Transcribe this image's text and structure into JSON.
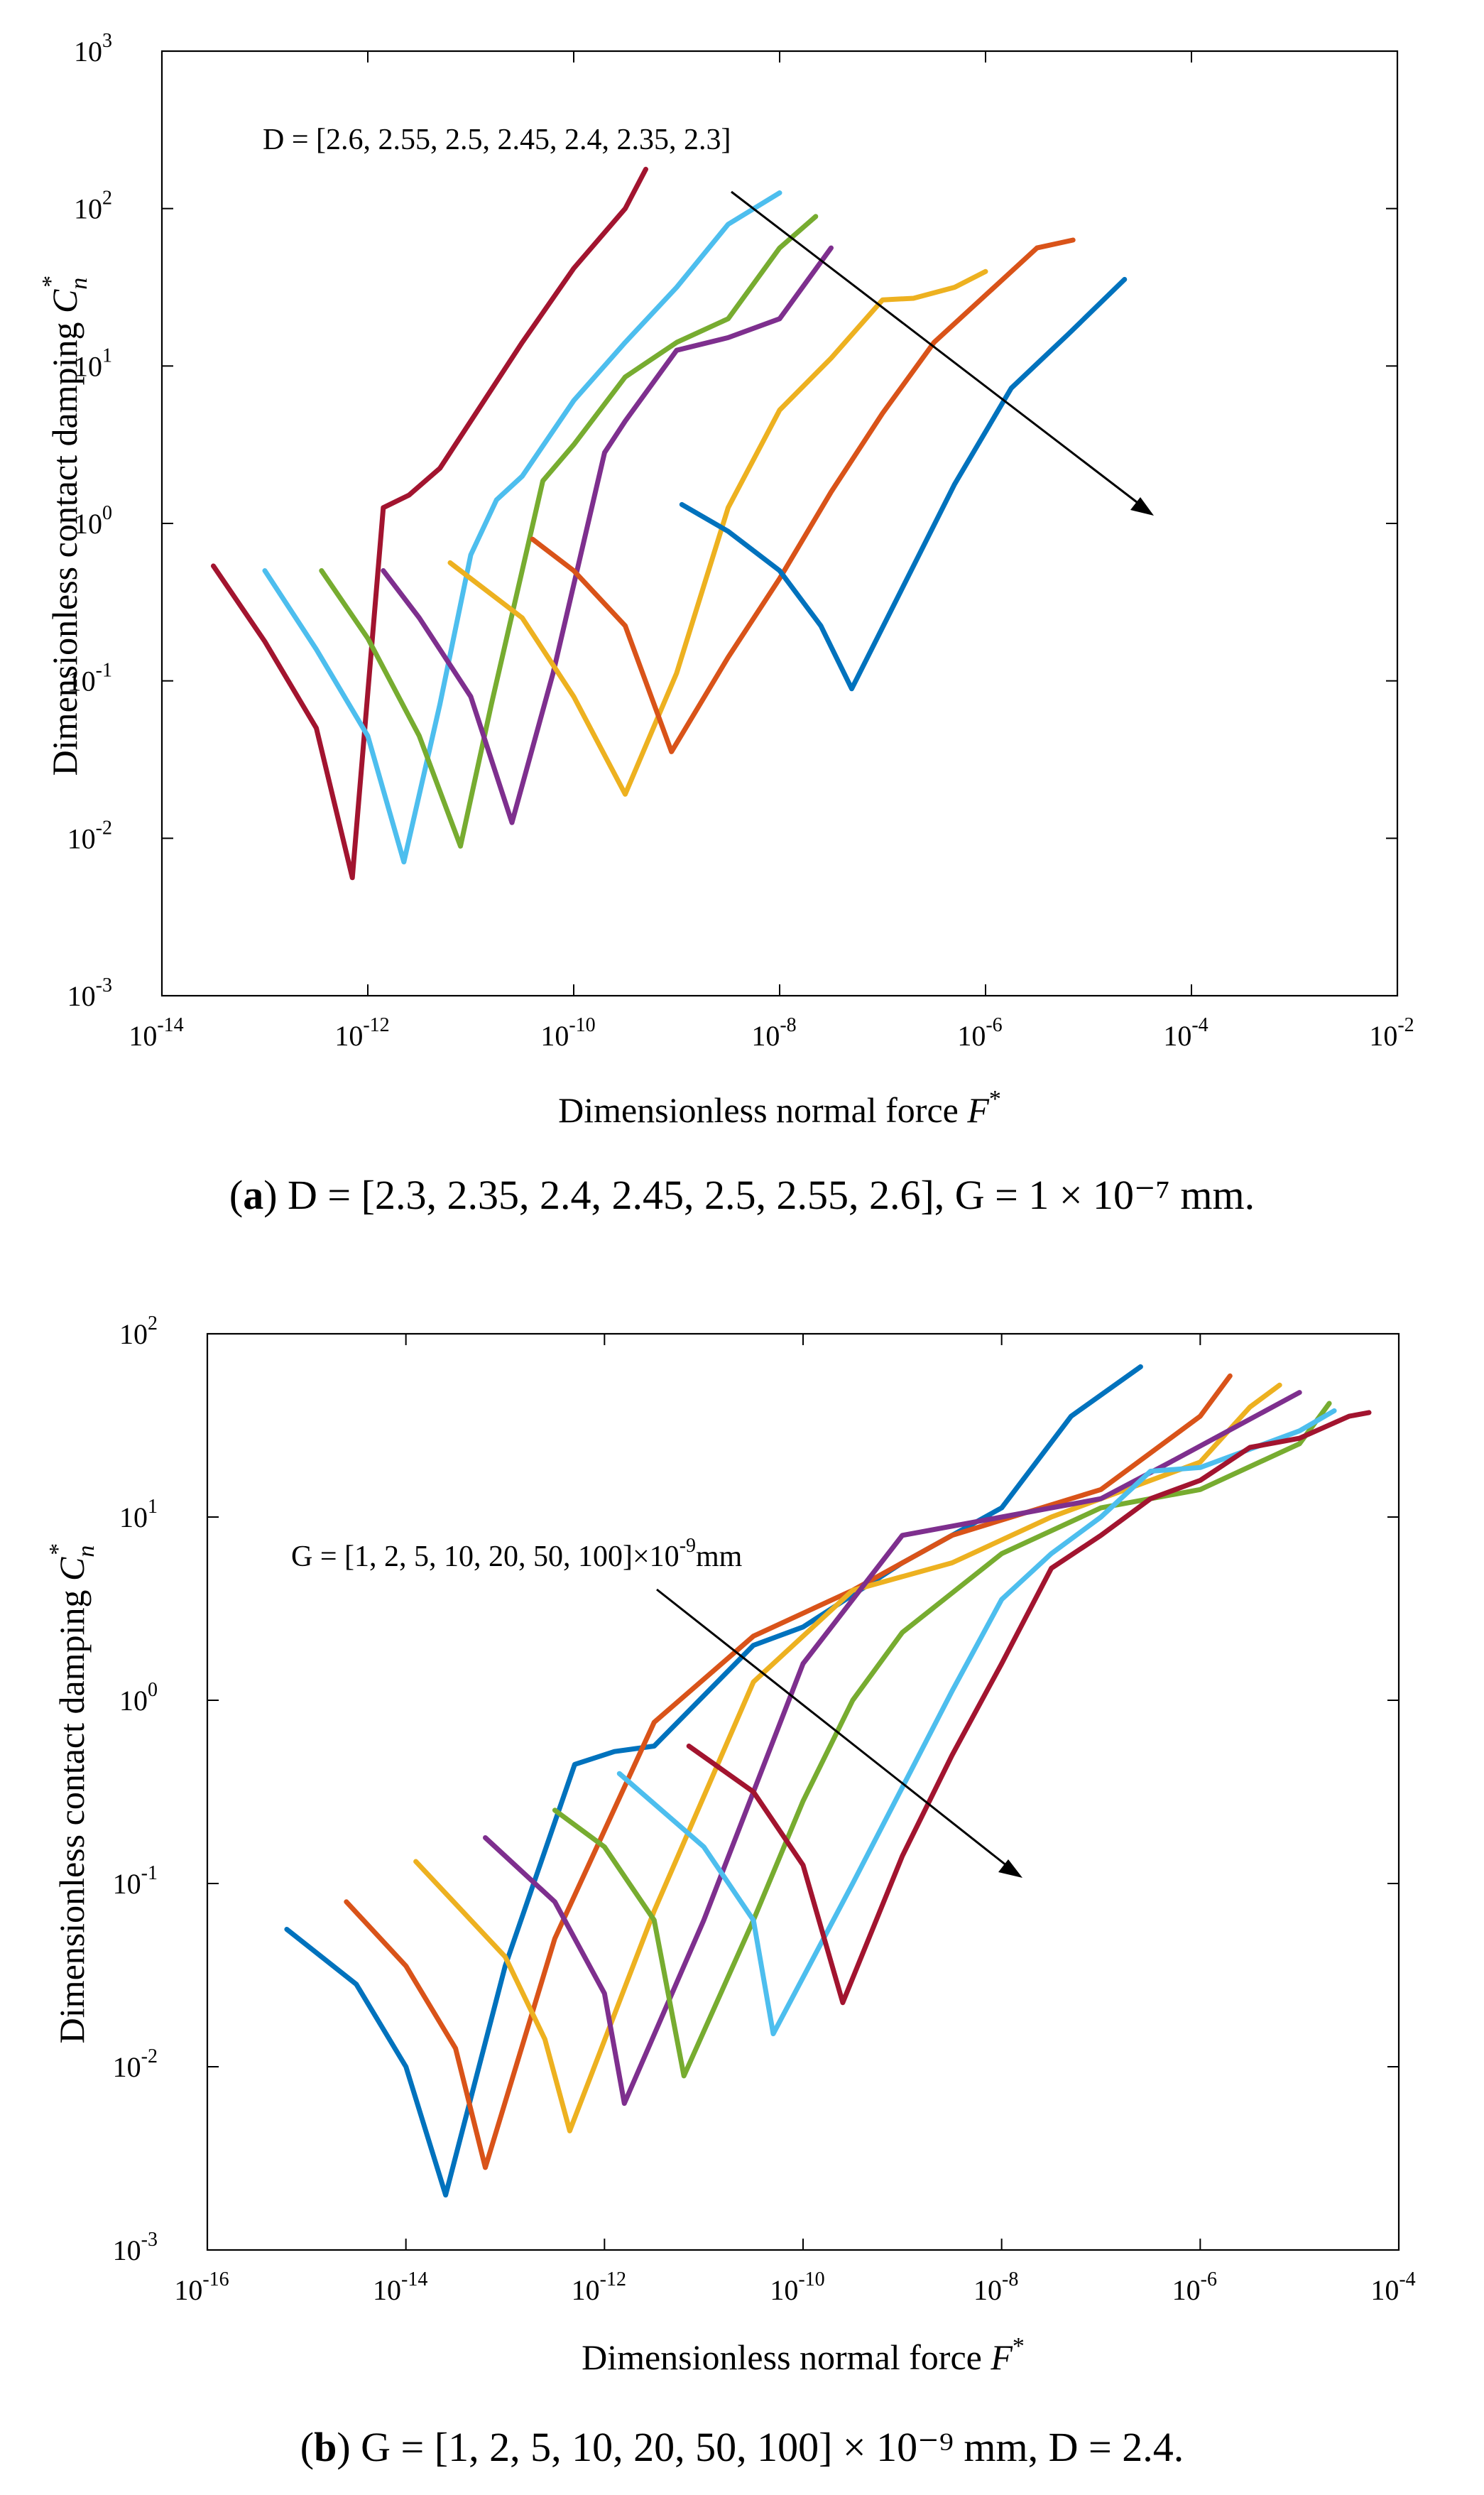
{
  "chart_data": [
    {
      "type": "line",
      "panel_label": "a",
      "xlabel": "Dimensionless normal force",
      "xlabel_symbol": "F",
      "xlabel_sup": "*",
      "ylabel": "Dimensionless contact damping",
      "ylabel_symbol": "C",
      "ylabel_sub": "n",
      "ylabel_sup": "*",
      "xscale": "log",
      "yscale": "log",
      "xlim": [
        1e-14,
        0.01
      ],
      "ylim": [
        0.001,
        1000.0
      ],
      "xticks": [
        {
          "base": "10",
          "exp": "-14"
        },
        {
          "base": "10",
          "exp": "-12"
        },
        {
          "base": "10",
          "exp": "-10"
        },
        {
          "base": "10",
          "exp": "-8"
        },
        {
          "base": "10",
          "exp": "-6"
        },
        {
          "base": "10",
          "exp": "-4"
        },
        {
          "base": "10",
          "exp": "-2"
        }
      ],
      "yticks": [
        {
          "base": "10",
          "exp": "-3"
        },
        {
          "base": "10",
          "exp": "-2"
        },
        {
          "base": "10",
          "exp": "-1"
        },
        {
          "base": "10",
          "exp": "0"
        },
        {
          "base": "10",
          "exp": "1"
        },
        {
          "base": "10",
          "exp": "2"
        },
        {
          "base": "10",
          "exp": "3"
        }
      ],
      "annotation": "D = [2.6, 2.55, 2.5, 2.45, 2.4, 2.35, 2.3]",
      "caption": {
        "label": "a",
        "text": "D = [2.3, 2.35, 2.4, 2.45, 2.5, 2.55, 2.6], G = 1 × 10⁻⁷ mm."
      },
      "series": [
        {
          "name": "D = 2.6",
          "color": "#A2142F",
          "points": [
            [
              -13.5,
              -0.27
            ],
            [
              -13.0,
              -0.75
            ],
            [
              -12.5,
              -1.3
            ],
            [
              -12.15,
              -2.25
            ],
            [
              -11.85,
              0.1
            ],
            [
              -11.6,
              0.18
            ],
            [
              -11.3,
              0.35
            ],
            [
              -11.0,
              0.65
            ],
            [
              -10.5,
              1.15
            ],
            [
              -10.0,
              1.62
            ],
            [
              -9.5,
              2.0
            ],
            [
              -9.3,
              2.25
            ]
          ]
        },
        {
          "name": "D = 2.55",
          "color": "#4DBEEE",
          "points": [
            [
              -13.0,
              -0.3
            ],
            [
              -12.5,
              -0.8
            ],
            [
              -12.0,
              -1.35
            ],
            [
              -11.65,
              -2.15
            ],
            [
              -11.3,
              -1.15
            ],
            [
              -11.0,
              -0.2
            ],
            [
              -10.75,
              0.15
            ],
            [
              -10.5,
              0.3
            ],
            [
              -10.0,
              0.78
            ],
            [
              -9.5,
              1.15
            ],
            [
              -9.0,
              1.5
            ],
            [
              -8.5,
              1.9
            ],
            [
              -8.0,
              2.1
            ]
          ]
        },
        {
          "name": "D = 2.5",
          "color": "#77AC30",
          "points": [
            [
              -12.45,
              -0.3
            ],
            [
              -12.0,
              -0.73
            ],
            [
              -11.5,
              -1.35
            ],
            [
              -11.1,
              -2.05
            ],
            [
              -10.8,
              -1.15
            ],
            [
              -10.3,
              0.27
            ],
            [
              -10.0,
              0.5
            ],
            [
              -9.5,
              0.93
            ],
            [
              -9.0,
              1.15
            ],
            [
              -8.5,
              1.3
            ],
            [
              -8.0,
              1.75
            ],
            [
              -7.65,
              1.95
            ]
          ]
        },
        {
          "name": "D = 2.45",
          "color": "#7E2F8E",
          "points": [
            [
              -11.85,
              -0.3
            ],
            [
              -11.5,
              -0.6
            ],
            [
              -11.0,
              -1.1
            ],
            [
              -10.6,
              -1.9
            ],
            [
              -10.2,
              -0.95
            ],
            [
              -9.7,
              0.45
            ],
            [
              -9.5,
              0.65
            ],
            [
              -9.0,
              1.1
            ],
            [
              -8.5,
              1.18
            ],
            [
              -8.0,
              1.3
            ],
            [
              -7.5,
              1.75
            ]
          ]
        },
        {
          "name": "D = 2.4",
          "color": "#EDB120",
          "points": [
            [
              -11.2,
              -0.25
            ],
            [
              -10.5,
              -0.6
            ],
            [
              -10.0,
              -1.1
            ],
            [
              -9.5,
              -1.72
            ],
            [
              -9.0,
              -0.95
            ],
            [
              -8.5,
              0.1
            ],
            [
              -8.0,
              0.72
            ],
            [
              -7.5,
              1.05
            ],
            [
              -7.0,
              1.42
            ],
            [
              -6.7,
              1.43
            ],
            [
              -6.3,
              1.5
            ],
            [
              -6.0,
              1.6
            ]
          ]
        },
        {
          "name": "D = 2.35",
          "color": "#D95319",
          "points": [
            [
              -10.4,
              -0.1
            ],
            [
              -10.0,
              -0.3
            ],
            [
              -9.5,
              -0.65
            ],
            [
              -9.05,
              -1.45
            ],
            [
              -8.5,
              -0.85
            ],
            [
              -8.0,
              -0.35
            ],
            [
              -7.5,
              0.2
            ],
            [
              -7.0,
              0.7
            ],
            [
              -6.5,
              1.15
            ],
            [
              -6.0,
              1.45
            ],
            [
              -5.5,
              1.75
            ],
            [
              -5.15,
              1.8
            ]
          ]
        },
        {
          "name": "D = 2.3",
          "color": "#0072BD",
          "points": [
            [
              -8.95,
              0.12
            ],
            [
              -8.5,
              -0.05
            ],
            [
              -8.0,
              -0.3
            ],
            [
              -7.6,
              -0.65
            ],
            [
              -7.3,
              -1.05
            ],
            [
              -6.8,
              -0.4
            ],
            [
              -6.3,
              0.25
            ],
            [
              -5.75,
              0.86
            ],
            [
              -5.2,
              1.2
            ],
            [
              -4.65,
              1.55
            ]
          ]
        }
      ]
    },
    {
      "type": "line",
      "panel_label": "b",
      "xlabel": "Dimensionless normal force",
      "xlabel_symbol": "F",
      "xlabel_sup": "*",
      "ylabel": "Dimensionless contact damping",
      "ylabel_symbol": "C",
      "ylabel_sub": "n",
      "ylabel_sup": "*",
      "xscale": "log",
      "yscale": "log",
      "xlim": [
        1e-16,
        0.0001
      ],
      "ylim": [
        0.001,
        100.0
      ],
      "xticks": [
        {
          "base": "10",
          "exp": "-16"
        },
        {
          "base": "10",
          "exp": "-14"
        },
        {
          "base": "10",
          "exp": "-12"
        },
        {
          "base": "10",
          "exp": "-10"
        },
        {
          "base": "10",
          "exp": "-8"
        },
        {
          "base": "10",
          "exp": "-6"
        },
        {
          "base": "10",
          "exp": "-4"
        }
      ],
      "yticks": [
        {
          "base": "10",
          "exp": "-3"
        },
        {
          "base": "10",
          "exp": "-2"
        },
        {
          "base": "10",
          "exp": "-1"
        },
        {
          "base": "10",
          "exp": "0"
        },
        {
          "base": "10",
          "exp": "1"
        },
        {
          "base": "10",
          "exp": "2"
        }
      ],
      "annotation": "G = [1, 2, 5, 10, 20, 50, 100]×10",
      "annotation_exp": "-9",
      "annotation_suffix": "mm",
      "caption": {
        "label": "b",
        "text": "G = [1, 2, 5, 10, 20, 50, 100] × 10⁻⁹ mm, D = 2.4."
      },
      "series": [
        {
          "name": "G = 1×10⁻⁹ mm",
          "color": "#0072BD",
          "points": [
            [
              -15.2,
              -1.25
            ],
            [
              -14.5,
              -1.55
            ],
            [
              -14.0,
              -2.0
            ],
            [
              -13.6,
              -2.7
            ],
            [
              -13.0,
              -1.45
            ],
            [
              -12.3,
              -0.35
            ],
            [
              -11.9,
              -0.28
            ],
            [
              -11.5,
              -0.25
            ],
            [
              -10.5,
              0.3
            ],
            [
              -10.0,
              0.4
            ],
            [
              -9.0,
              0.75
            ],
            [
              -8.0,
              1.05
            ],
            [
              -7.3,
              1.55
            ],
            [
              -6.6,
              1.82
            ]
          ]
        },
        {
          "name": "G = 2×10⁻⁹ mm",
          "color": "#D95319",
          "points": [
            [
              -14.6,
              -1.1
            ],
            [
              -14.0,
              -1.45
            ],
            [
              -13.5,
              -1.9
            ],
            [
              -13.2,
              -2.55
            ],
            [
              -12.5,
              -1.3
            ],
            [
              -11.5,
              -0.12
            ],
            [
              -10.5,
              0.35
            ],
            [
              -9.5,
              0.6
            ],
            [
              -8.5,
              0.9
            ],
            [
              -7.0,
              1.15
            ],
            [
              -6.0,
              1.55
            ],
            [
              -5.7,
              1.77
            ]
          ]
        },
        {
          "name": "G = 5×10⁻⁹ mm",
          "color": "#EDB120",
          "points": [
            [
              -13.9,
              -0.88
            ],
            [
              -13.0,
              -1.4
            ],
            [
              -12.6,
              -1.85
            ],
            [
              -12.35,
              -2.35
            ],
            [
              -11.5,
              -1.15
            ],
            [
              -10.5,
              0.1
            ],
            [
              -9.5,
              0.6
            ],
            [
              -8.5,
              0.75
            ],
            [
              -7.5,
              1.0
            ],
            [
              -6.0,
              1.3
            ],
            [
              -5.5,
              1.6
            ],
            [
              -5.2,
              1.72
            ]
          ]
        },
        {
          "name": "G = 10×10⁻⁹ mm",
          "color": "#7E2F8E",
          "points": [
            [
              -13.2,
              -0.75
            ],
            [
              -12.5,
              -1.1
            ],
            [
              -12.0,
              -1.6
            ],
            [
              -11.8,
              -2.2
            ],
            [
              -11.0,
              -1.2
            ],
            [
              -10.5,
              -0.5
            ],
            [
              -10.0,
              0.2
            ],
            [
              -9.0,
              0.9
            ],
            [
              -8.0,
              1.0
            ],
            [
              -7.0,
              1.1
            ],
            [
              -6.3,
              1.3
            ],
            [
              -5.0,
              1.68
            ]
          ]
        },
        {
          "name": "G = 20×10⁻⁹ mm",
          "color": "#77AC30",
          "points": [
            [
              -12.5,
              -0.6
            ],
            [
              -12.0,
              -0.8
            ],
            [
              -11.5,
              -1.2
            ],
            [
              -11.2,
              -2.05
            ],
            [
              -10.5,
              -1.2
            ],
            [
              -10.0,
              -0.55
            ],
            [
              -9.5,
              0.0
            ],
            [
              -9.0,
              0.37
            ],
            [
              -8.0,
              0.8
            ],
            [
              -7.0,
              1.05
            ],
            [
              -6.0,
              1.15
            ],
            [
              -5.0,
              1.4
            ],
            [
              -4.7,
              1.62
            ]
          ]
        },
        {
          "name": "G = 50×10⁻⁹ mm",
          "color": "#4DBEEE",
          "points": [
            [
              -11.85,
              -0.4
            ],
            [
              -11.0,
              -0.8
            ],
            [
              -10.5,
              -1.2
            ],
            [
              -10.3,
              -1.82
            ],
            [
              -9.5,
              -1.0
            ],
            [
              -8.5,
              0.05
            ],
            [
              -8.0,
              0.55
            ],
            [
              -7.5,
              0.8
            ],
            [
              -7.0,
              1.0
            ],
            [
              -6.5,
              1.25
            ],
            [
              -6.0,
              1.27
            ],
            [
              -5.5,
              1.37
            ],
            [
              -5.0,
              1.47
            ],
            [
              -4.65,
              1.58
            ]
          ]
        },
        {
          "name": "G = 100×10⁻⁹ mm",
          "color": "#A2142F",
          "points": [
            [
              -11.15,
              -0.25
            ],
            [
              -10.5,
              -0.5
            ],
            [
              -10.0,
              -0.9
            ],
            [
              -9.6,
              -1.65
            ],
            [
              -9.0,
              -0.85
            ],
            [
              -8.5,
              -0.3
            ],
            [
              -8.0,
              0.2
            ],
            [
              -7.5,
              0.72
            ],
            [
              -7.0,
              0.9
            ],
            [
              -6.5,
              1.1
            ],
            [
              -6.0,
              1.2
            ],
            [
              -5.5,
              1.38
            ],
            [
              -5.0,
              1.43
            ],
            [
              -4.5,
              1.55
            ],
            [
              -4.3,
              1.57
            ]
          ]
        }
      ]
    }
  ]
}
